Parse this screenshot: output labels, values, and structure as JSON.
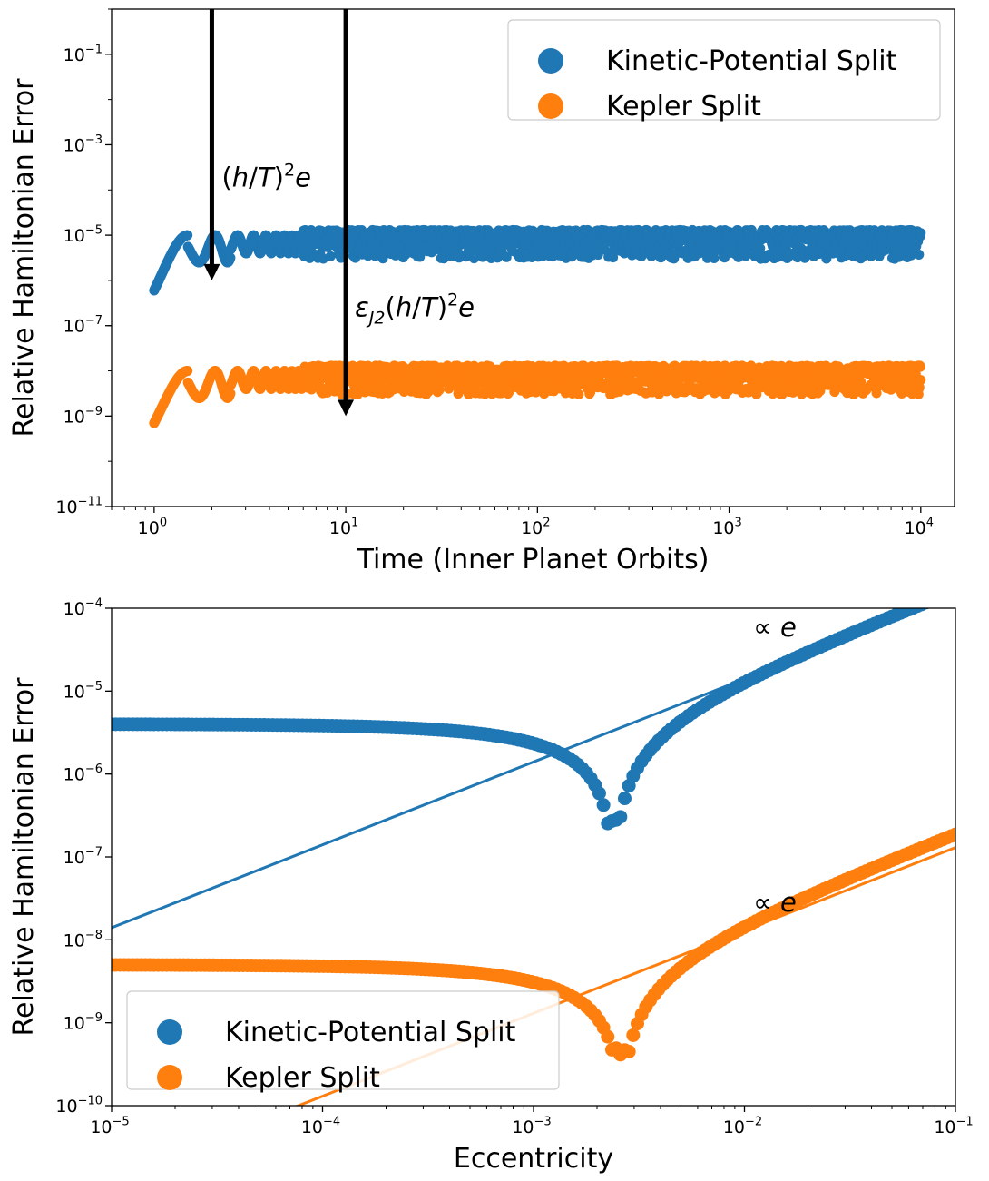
{
  "chart_data": [
    {
      "id": "top",
      "type": "scatter",
      "xscale": "log",
      "yscale": "log",
      "xlabel": "Time (Inner Planet Orbits)",
      "ylabel": "Relative Hamiltonian Error",
      "xlim": [
        0.6,
        15000
      ],
      "ylim": [
        1e-11,
        1
      ],
      "xticks": [
        1,
        10,
        100,
        1000,
        10000
      ],
      "xtick_labels": [
        {
          "base": "10",
          "exp": "0"
        },
        {
          "base": "10",
          "exp": "1"
        },
        {
          "base": "10",
          "exp": "2"
        },
        {
          "base": "10",
          "exp": "3"
        },
        {
          "base": "10",
          "exp": "4"
        }
      ],
      "yticks": [
        1e-11,
        1e-09,
        1e-07,
        1e-05,
        0.001,
        0.1
      ],
      "ytick_labels": [
        {
          "base": "10",
          "exp": "−11"
        },
        {
          "base": "10",
          "exp": "−9"
        },
        {
          "base": "10",
          "exp": "−7"
        },
        {
          "base": "10",
          "exp": "−5"
        },
        {
          "base": "10",
          "exp": "−3"
        },
        {
          "base": "10",
          "exp": "−1"
        }
      ],
      "legend_position": "upper right",
      "series": [
        {
          "name": "Kinetic-Potential Split",
          "color": "#1f77b4",
          "t_range": [
            1,
            10000
          ],
          "start_value": 6e-07,
          "peak_value": 1e-05,
          "scatter_band": [
            3e-06,
            1.3e-05
          ]
        },
        {
          "name": "Kepler Split",
          "color": "#ff7f0e",
          "t_range": [
            1,
            10000
          ],
          "start_value": 7e-10,
          "peak_value": 1e-08,
          "scatter_band": [
            3e-09,
            1.3e-08
          ]
        }
      ],
      "arrows": [
        {
          "x": 2,
          "from": 1,
          "to": 1e-06,
          "label": {
            "pre": "(",
            "h": "h",
            "slash": "/",
            "T": "T",
            "post": ")",
            "sup": "2",
            "e": "e"
          }
        },
        {
          "x": 10,
          "from": 1,
          "to": 1e-09,
          "label": {
            "eps": "ε",
            "sub": "J2",
            "pre": "(",
            "h": "h",
            "slash": "/",
            "T": "T",
            "post": ")",
            "sup": "2",
            "e": "e"
          }
        }
      ]
    },
    {
      "id": "bottom",
      "type": "scatter",
      "xscale": "log",
      "yscale": "log",
      "xlabel": "Eccentricity",
      "ylabel": "Relative Hamiltonian Error",
      "xlim": [
        1e-05,
        0.1
      ],
      "ylim": [
        1e-10,
        0.0001
      ],
      "xticks": [
        1e-05,
        0.0001,
        0.001,
        0.01,
        0.1
      ],
      "xtick_labels": [
        {
          "base": "10",
          "exp": "−5"
        },
        {
          "base": "10",
          "exp": "−4"
        },
        {
          "base": "10",
          "exp": "−3"
        },
        {
          "base": "10",
          "exp": "−2"
        },
        {
          "base": "10",
          "exp": "−1"
        }
      ],
      "yticks": [
        1e-10,
        1e-09,
        1e-08,
        1e-07,
        1e-06,
        1e-05,
        0.0001
      ],
      "ytick_labels": [
        {
          "base": "10",
          "exp": "−10"
        },
        {
          "base": "10",
          "exp": "−9"
        },
        {
          "base": "10",
          "exp": "−8"
        },
        {
          "base": "10",
          "exp": "−7"
        },
        {
          "base": "10",
          "exp": "−6"
        },
        {
          "base": "10",
          "exp": "−5"
        },
        {
          "base": "10",
          "exp": "−4"
        }
      ],
      "legend_position": "lower left",
      "series": [
        {
          "name": "Kinetic-Potential Split",
          "color": "#1f77b4",
          "plateau": 4e-06,
          "dip_e": 0.0024,
          "dip_value": 2.5e-07,
          "slope": 1,
          "fit_line": [
            [
              1e-05,
              1.4e-08
            ],
            [
              0.1,
              0.00014
            ]
          ]
        },
        {
          "name": "Kepler Split",
          "color": "#ff7f0e",
          "plateau": 5e-09,
          "dip_e": 0.0026,
          "dip_value": 4e-10,
          "slope": 1,
          "fit_line": [
            [
              1e-05,
              1.3e-11
            ],
            [
              0.1,
              1.3e-07
            ]
          ]
        }
      ],
      "annotations": [
        {
          "text_prefix": "∝ ",
          "text_var": "e",
          "x": 0.011,
          "y": 4.6e-05
        },
        {
          "text_prefix": "∝ ",
          "text_var": "e",
          "x": 0.011,
          "y": 2.2e-08
        }
      ]
    }
  ],
  "legend_entries": [
    "Kinetic-Potential Split",
    "Kepler Split"
  ],
  "colors": {
    "blue": "#1f77b4",
    "orange": "#ff7f0e"
  }
}
